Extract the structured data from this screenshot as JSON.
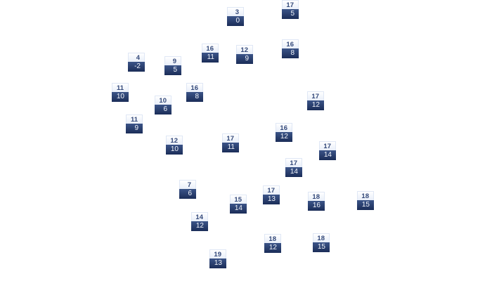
{
  "colors": {
    "top_fill": "#eef3fb",
    "top_text": "#34497a",
    "bottom_fill": "#263d6e",
    "bottom_text": "#f2f5fb"
  },
  "tiles": [
    {
      "top": "3",
      "bottom": "0"
    },
    {
      "top": "17",
      "bottom": "5"
    },
    {
      "top": "16",
      "bottom": "11"
    },
    {
      "top": "12",
      "bottom": "9"
    },
    {
      "top": "16",
      "bottom": "8"
    },
    {
      "top": "4",
      "bottom": "-2"
    },
    {
      "top": "9",
      "bottom": "5"
    },
    {
      "top": "11",
      "bottom": "10"
    },
    {
      "top": "16",
      "bottom": "8"
    },
    {
      "top": "10",
      "bottom": "6"
    },
    {
      "top": "11",
      "bottom": "9"
    },
    {
      "top": "17",
      "bottom": "12"
    },
    {
      "top": "16",
      "bottom": "12"
    },
    {
      "top": "12",
      "bottom": "10"
    },
    {
      "top": "17",
      "bottom": "11"
    },
    {
      "top": "17",
      "bottom": "14"
    },
    {
      "top": "17",
      "bottom": "14"
    },
    {
      "top": "7",
      "bottom": "6"
    },
    {
      "top": "17",
      "bottom": "13"
    },
    {
      "top": "15",
      "bottom": "14"
    },
    {
      "top": "18",
      "bottom": "16"
    },
    {
      "top": "18",
      "bottom": "15"
    },
    {
      "top": "14",
      "bottom": "12"
    },
    {
      "top": "18",
      "bottom": "12"
    },
    {
      "top": "18",
      "bottom": "15"
    },
    {
      "top": "19",
      "bottom": "13"
    }
  ]
}
